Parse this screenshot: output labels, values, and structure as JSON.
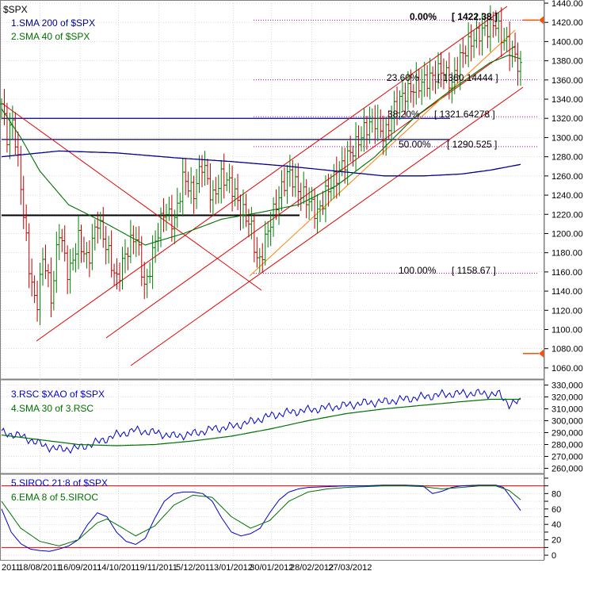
{
  "colors": {
    "background": "#ffffff",
    "grid": "#bfbfbf",
    "price_up": "#008000",
    "price_down": "#c00000",
    "sma200": "#000090",
    "sma40": "#007000",
    "channel": "#e00000",
    "fib_line": "#b000b0",
    "support_line": "#000080",
    "black_line": "#000000",
    "rsc": "#0000cc",
    "rsc_sma": "#007000",
    "siroc": "#0000cc",
    "siroc_ema": "#007000",
    "siroc_band": "#e00000",
    "marker": "#ff5000"
  },
  "chart_data": [
    {
      "type": "ohlc",
      "title": "$SPX",
      "legend": [
        {
          "name": "1.SMA 200  of $SPX",
          "color": "#000090"
        },
        {
          "name": "2.SMA 40  of $SPX",
          "color": "#007000"
        }
      ],
      "ylim": [
        1050,
        1440
      ],
      "yticks": [
        1060,
        1080,
        1100,
        1120,
        1140,
        1160,
        1180,
        1200,
        1220,
        1240,
        1260,
        1280,
        1300,
        1320,
        1340,
        1360,
        1380,
        1400,
        1420,
        1440
      ],
      "n_bars": 190,
      "close_path": [
        [
          0,
          1335
        ],
        [
          3,
          1300
        ],
        [
          6,
          1318
        ],
        [
          10,
          1250
        ],
        [
          14,
          1170
        ],
        [
          18,
          1120
        ],
        [
          22,
          1180
        ],
        [
          26,
          1130
        ],
        [
          30,
          1205
        ],
        [
          35,
          1155
        ],
        [
          40,
          1195
        ],
        [
          45,
          1170
        ],
        [
          50,
          1215
        ],
        [
          55,
          1185
        ],
        [
          60,
          1150
        ],
        [
          65,
          1180
        ],
        [
          70,
          1200
        ],
        [
          75,
          1140
        ],
        [
          80,
          1190
        ],
        [
          85,
          1225
        ],
        [
          90,
          1210
        ],
        [
          95,
          1260
        ],
        [
          100,
          1240
        ],
        [
          105,
          1275
        ],
        [
          110,
          1235
        ],
        [
          115,
          1260
        ],
        [
          120,
          1250
        ],
        [
          125,
          1225
        ],
        [
          130,
          1210
        ],
        [
          134,
          1165
        ],
        [
          140,
          1210
        ],
        [
          145,
          1240
        ],
        [
          150,
          1265
        ],
        [
          155,
          1245
        ],
        [
          160,
          1235
        ],
        [
          165,
          1220
        ],
        [
          170,
          1245
        ],
        [
          175,
          1260
        ],
        [
          180,
          1278
        ],
        [
          185,
          1292
        ],
        [
          190,
          1310
        ],
        [
          195,
          1318
        ],
        [
          200,
          1300
        ],
        [
          205,
          1330
        ],
        [
          210,
          1345
        ],
        [
          215,
          1352
        ],
        [
          220,
          1358
        ],
        [
          225,
          1363
        ],
        [
          230,
          1372
        ],
        [
          235,
          1355
        ],
        [
          240,
          1385
        ],
        [
          245,
          1400
        ],
        [
          250,
          1410
        ],
        [
          255,
          1415
        ],
        [
          258,
          1420
        ],
        [
          261,
          1405
        ],
        [
          265,
          1395
        ],
        [
          268,
          1385
        ],
        [
          271,
          1370
        ]
      ],
      "sma200": [
        [
          0,
          1280
        ],
        [
          30,
          1286
        ],
        [
          60,
          1284
        ],
        [
          90,
          1279
        ],
        [
          120,
          1275
        ],
        [
          150,
          1270
        ],
        [
          180,
          1264
        ],
        [
          200,
          1260
        ],
        [
          220,
          1260
        ],
        [
          240,
          1262
        ],
        [
          255,
          1266
        ],
        [
          271,
          1272
        ]
      ],
      "sma40": [
        [
          0,
          1330
        ],
        [
          10,
          1300
        ],
        [
          20,
          1265
        ],
        [
          35,
          1230
        ],
        [
          55,
          1210
        ],
        [
          75,
          1188
        ],
        [
          95,
          1200
        ],
        [
          115,
          1215
        ],
        [
          135,
          1222
        ],
        [
          155,
          1230
        ],
        [
          175,
          1250
        ],
        [
          195,
          1280
        ],
        [
          215,
          1320
        ],
        [
          235,
          1350
        ],
        [
          255,
          1378
        ],
        [
          265,
          1386
        ],
        [
          271,
          1382
        ]
      ],
      "fibonacci": [
        {
          "pct": "0.00%",
          "value": "[ 1422.38 ]",
          "level": 1422.38
        },
        {
          "pct": "23.60%",
          "value": "[ 1360.14444 ]",
          "level": 1360.14444
        },
        {
          "pct": "38.20%",
          "value": "[ 1321.64278 ]",
          "level": 1321.64278
        },
        {
          "pct": "50.00%",
          "value": "[ 1290.525 ]",
          "level": 1290.525
        },
        {
          "pct": "100.00%",
          "value": "[ 1158.67 ]",
          "level": 1158.67
        }
      ],
      "horizontal_lines": [
        {
          "level": 1320,
          "color": "#000080"
        },
        {
          "level": 1298,
          "color": "#000080"
        },
        {
          "level": 1219,
          "color": "#000000"
        }
      ],
      "markers": [
        1422.38,
        1075
      ]
    },
    {
      "type": "line",
      "legend": [
        {
          "name": "3.RSC  $XAO  of $SPX",
          "color": "#0000cc"
        },
        {
          "name": "4.SMA 30  of 3.RSC",
          "color": "#007000"
        }
      ],
      "ylim": [
        257000,
        333000
      ],
      "yticks": [
        "260,000",
        "270,000",
        "280,000",
        "290,000",
        "300,000",
        "310,000",
        "320,000",
        "330,000"
      ],
      "yticks_values": [
        260000,
        270000,
        280000,
        290000,
        300000,
        310000,
        320000,
        330000
      ],
      "rsc": [
        [
          0,
          290000
        ],
        [
          8,
          288000
        ],
        [
          15,
          284000
        ],
        [
          22,
          279000
        ],
        [
          30,
          276000
        ],
        [
          40,
          277000
        ],
        [
          50,
          282000
        ],
        [
          60,
          288000
        ],
        [
          70,
          292000
        ],
        [
          80,
          290000
        ],
        [
          90,
          287000
        ],
        [
          100,
          289000
        ],
        [
          110,
          293000
        ],
        [
          120,
          295000
        ],
        [
          130,
          299000
        ],
        [
          140,
          304000
        ],
        [
          150,
          307000
        ],
        [
          160,
          309000
        ],
        [
          170,
          311000
        ],
        [
          180,
          313000
        ],
        [
          190,
          315000
        ],
        [
          200,
          316000
        ],
        [
          210,
          318000
        ],
        [
          220,
          320000
        ],
        [
          230,
          322000
        ],
        [
          240,
          323000
        ],
        [
          250,
          323000
        ],
        [
          260,
          322000
        ],
        [
          265,
          314000
        ],
        [
          271,
          316000
        ]
      ],
      "rsc_sma": [
        [
          0,
          288000
        ],
        [
          20,
          284000
        ],
        [
          40,
          280000
        ],
        [
          60,
          279000
        ],
        [
          80,
          280000
        ],
        [
          100,
          283000
        ],
        [
          120,
          287000
        ],
        [
          140,
          293000
        ],
        [
          160,
          300000
        ],
        [
          180,
          306000
        ],
        [
          200,
          310000
        ],
        [
          220,
          313000
        ],
        [
          240,
          316000
        ],
        [
          255,
          318000
        ],
        [
          271,
          318000
        ]
      ]
    },
    {
      "type": "line",
      "legend": [
        {
          "name": "5.SIROC 21:8  of $SPX",
          "color": "#0000cc"
        },
        {
          "name": "6.EMA 8  of 5.SIROC",
          "color": "#007000"
        }
      ],
      "ylim": [
        -3,
        103
      ],
      "yticks": [
        0,
        10,
        20,
        30,
        40,
        50,
        60,
        70,
        80,
        90,
        100
      ],
      "ytick_labels": [
        "0",
        "20",
        "40",
        "60",
        "80"
      ],
      "bands": [
        90,
        10
      ],
      "siroc": [
        [
          0,
          60
        ],
        [
          5,
          30
        ],
        [
          10,
          15
        ],
        [
          15,
          8
        ],
        [
          20,
          6
        ],
        [
          25,
          5
        ],
        [
          30,
          8
        ],
        [
          35,
          12
        ],
        [
          40,
          20
        ],
        [
          45,
          40
        ],
        [
          50,
          55
        ],
        [
          55,
          50
        ],
        [
          60,
          30
        ],
        [
          65,
          18
        ],
        [
          70,
          14
        ],
        [
          75,
          22
        ],
        [
          80,
          48
        ],
        [
          85,
          70
        ],
        [
          90,
          80
        ],
        [
          95,
          82
        ],
        [
          100,
          82
        ],
        [
          105,
          80
        ],
        [
          110,
          70
        ],
        [
          115,
          48
        ],
        [
          120,
          30
        ],
        [
          125,
          25
        ],
        [
          130,
          28
        ],
        [
          135,
          35
        ],
        [
          140,
          55
        ],
        [
          145,
          72
        ],
        [
          150,
          82
        ],
        [
          155,
          86
        ],
        [
          160,
          88
        ],
        [
          170,
          89
        ],
        [
          180,
          90
        ],
        [
          190,
          90
        ],
        [
          200,
          91
        ],
        [
          210,
          91
        ],
        [
          220,
          90
        ],
        [
          225,
          80
        ],
        [
          230,
          83
        ],
        [
          235,
          88
        ],
        [
          240,
          90
        ],
        [
          250,
          91
        ],
        [
          258,
          91
        ],
        [
          262,
          88
        ],
        [
          266,
          75
        ],
        [
          271,
          58
        ]
      ],
      "siroc_ema": [
        [
          0,
          70
        ],
        [
          10,
          35
        ],
        [
          20,
          18
        ],
        [
          30,
          12
        ],
        [
          40,
          20
        ],
        [
          50,
          42
        ],
        [
          55,
          47
        ],
        [
          60,
          40
        ],
        [
          70,
          25
        ],
        [
          80,
          38
        ],
        [
          90,
          65
        ],
        [
          100,
          78
        ],
        [
          110,
          75
        ],
        [
          120,
          50
        ],
        [
          130,
          35
        ],
        [
          140,
          45
        ],
        [
          150,
          70
        ],
        [
          160,
          82
        ],
        [
          170,
          86
        ],
        [
          180,
          88
        ],
        [
          190,
          89
        ],
        [
          200,
          90
        ],
        [
          210,
          90
        ],
        [
          220,
          89
        ],
        [
          230,
          86
        ],
        [
          240,
          88
        ],
        [
          250,
          90
        ],
        [
          258,
          90
        ],
        [
          265,
          84
        ],
        [
          271,
          72
        ]
      ]
    }
  ],
  "x_axis": {
    "labels": [
      "2011",
      "18/08/2011",
      "16/09/2011",
      "14/10/2011",
      "9/11/2011",
      "5/12/2011",
      "3/01/2012",
      "30/01/2012",
      "28/02/2012",
      "27/03/2012"
    ],
    "label_index": [
      0,
      20,
      41,
      61,
      82,
      101,
      121,
      141,
      162,
      182
    ]
  }
}
